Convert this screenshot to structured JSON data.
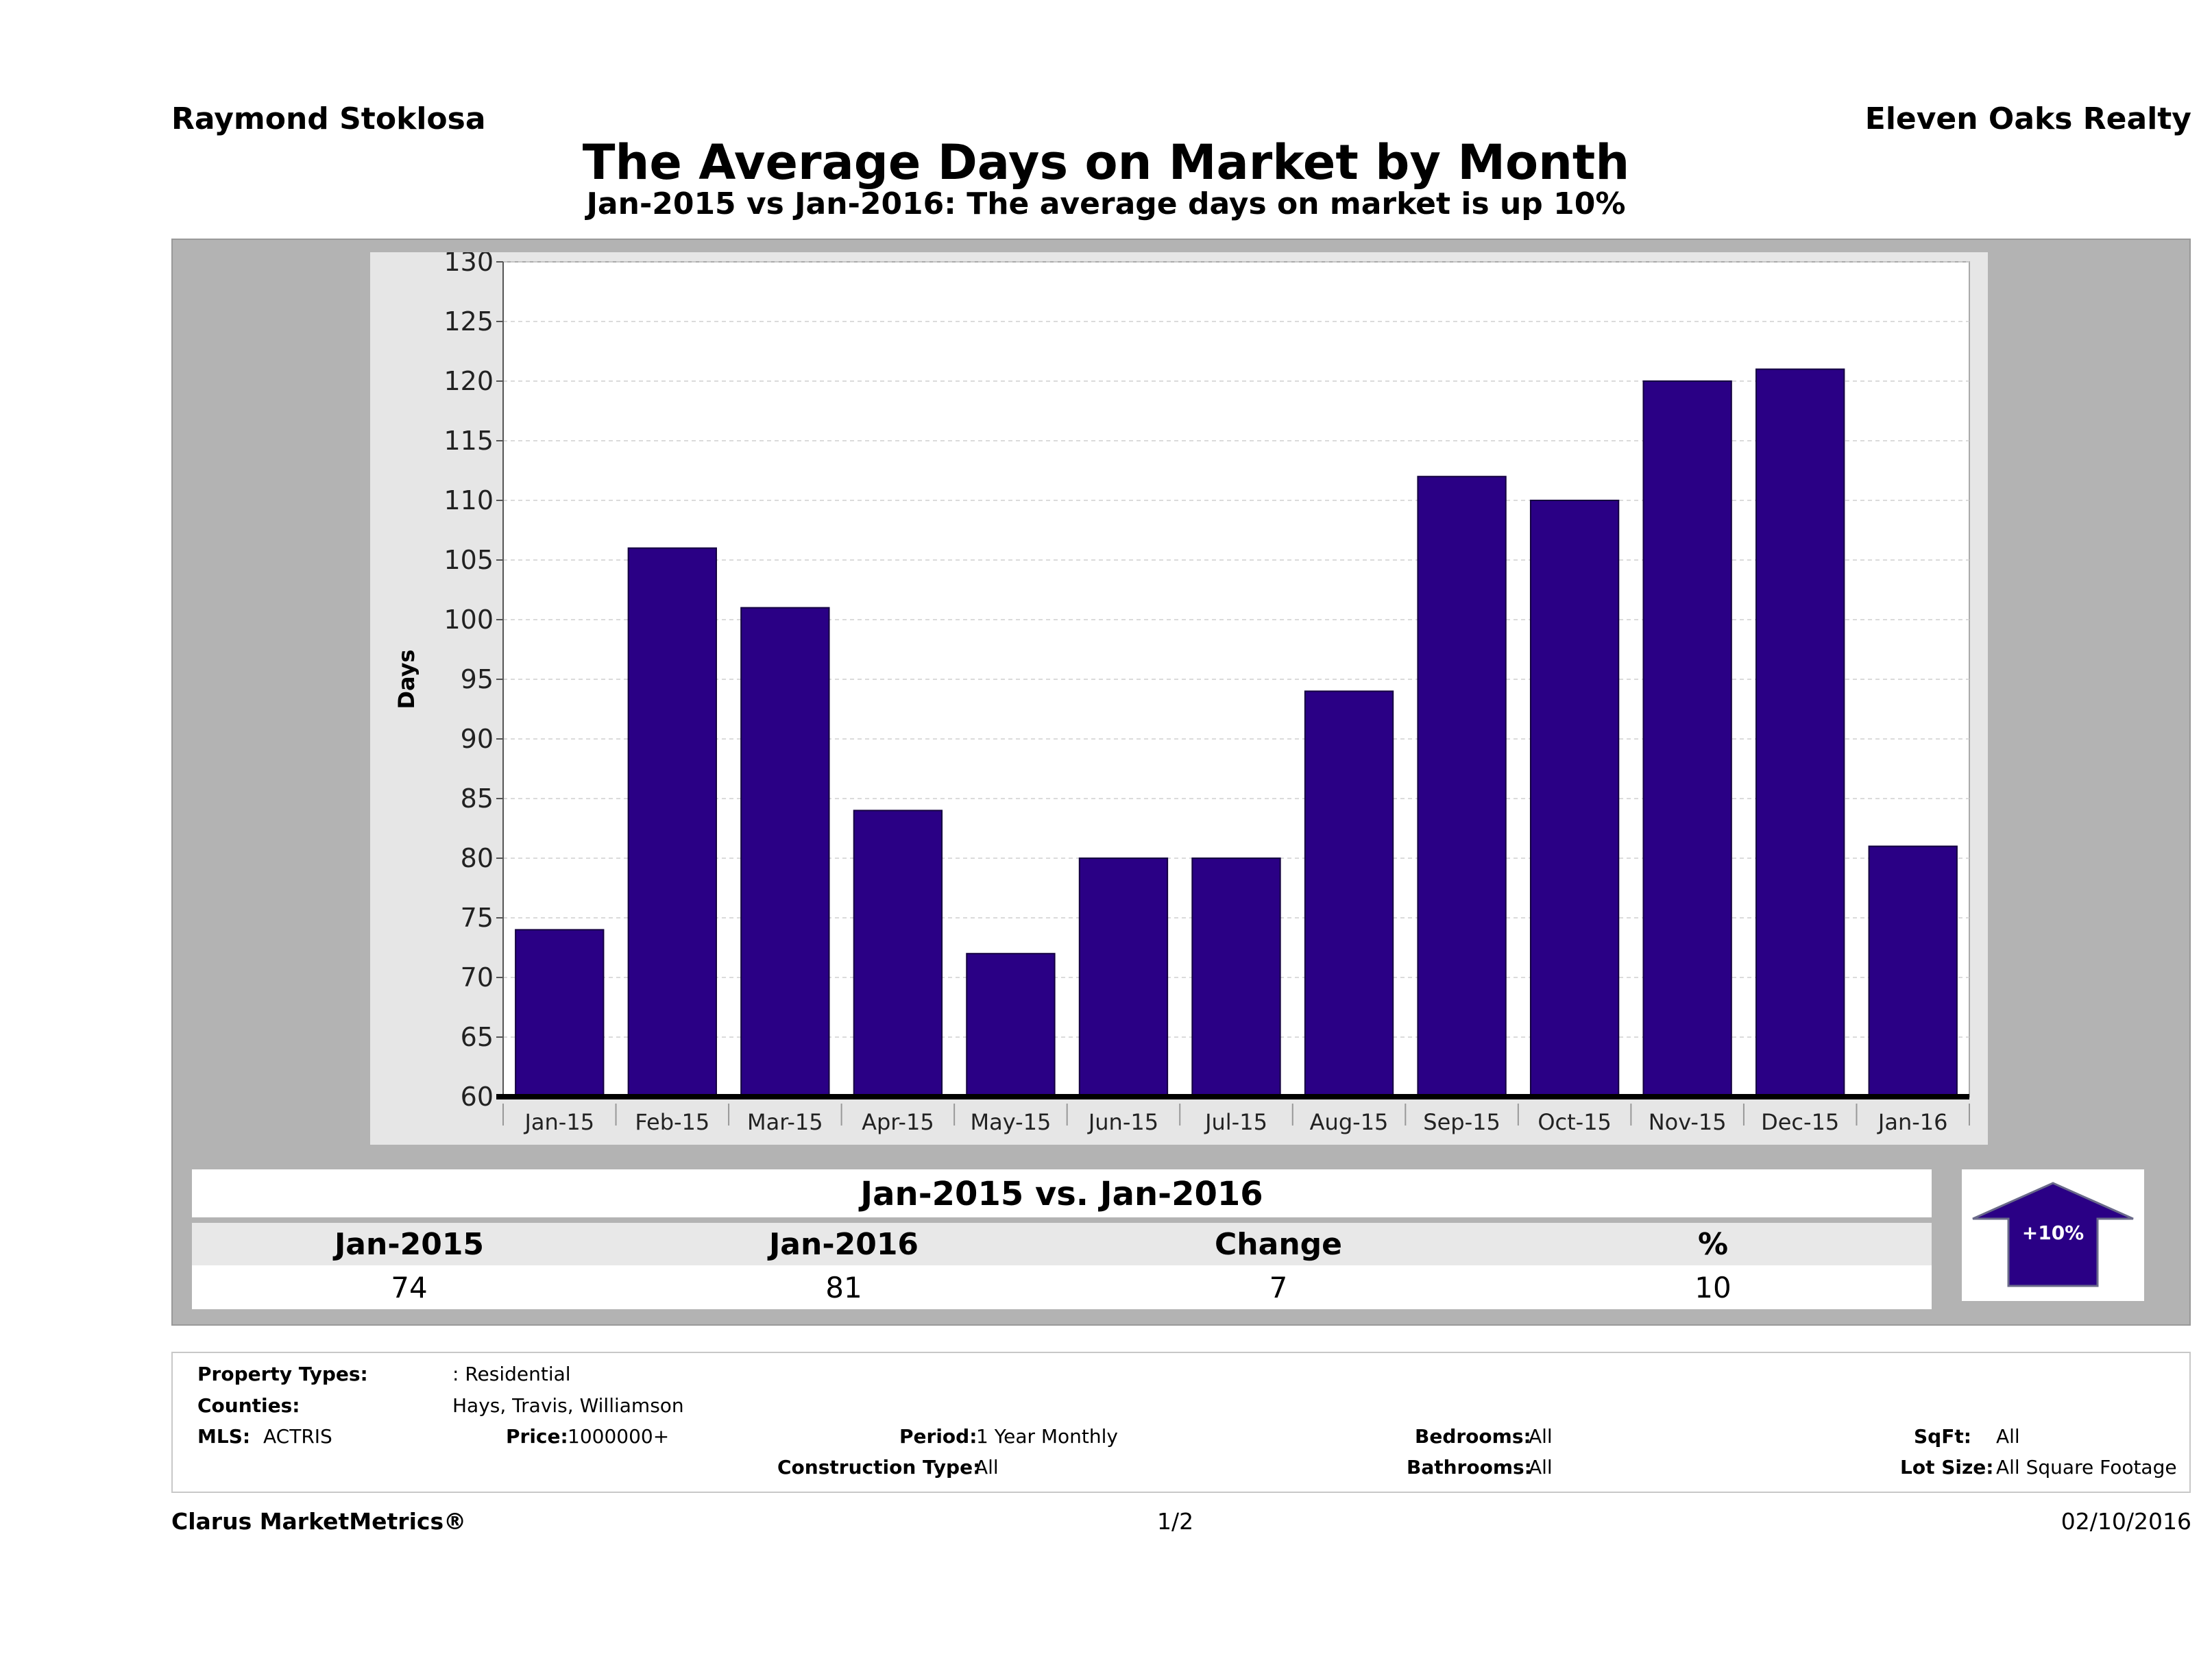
{
  "header": {
    "agent_name": "Raymond Stoklosa",
    "company": "Eleven Oaks Realty",
    "title": "The Average Days on Market by Month",
    "subtitle": "Jan-2015 vs Jan-2016: The average days on market is up 10%"
  },
  "chart_data": {
    "type": "bar",
    "ylabel": "Days",
    "xlabel": "",
    "categories": [
      "Jan-15",
      "Feb-15",
      "Mar-15",
      "Apr-15",
      "May-15",
      "Jun-15",
      "Jul-15",
      "Aug-15",
      "Sep-15",
      "Oct-15",
      "Nov-15",
      "Dec-15",
      "Jan-16"
    ],
    "values": [
      74,
      106,
      101,
      84,
      72,
      80,
      80,
      94,
      112,
      110,
      120,
      121,
      81
    ],
    "ylim": [
      60,
      130
    ],
    "yticks": [
      60,
      65,
      70,
      75,
      80,
      85,
      90,
      95,
      100,
      105,
      110,
      115,
      120,
      125,
      130
    ],
    "grid": true,
    "bar_color": "#2a0085",
    "legend": "none"
  },
  "summary": {
    "title": "Jan-2015 vs. Jan-2016",
    "headers": [
      "Jan-2015",
      "Jan-2016",
      "Change",
      "%"
    ],
    "values": [
      "74",
      "81",
      "7",
      "10"
    ],
    "badge_label": "+10%",
    "badge_direction": "up",
    "badge_color": "#2a0085"
  },
  "filters": {
    "property_types_label": "Property Types:",
    "property_types_value": ": Residential",
    "counties_label": "Counties:",
    "counties_value": "Hays, Travis, Williamson",
    "mls_label": "MLS:",
    "mls_value": "ACTRIS",
    "price_label": "Price:",
    "price_value": "1000000+",
    "period_label": "Period:",
    "period_value": "1 Year Monthly",
    "construction_label": "Construction Type:",
    "construction_value": "All",
    "bedrooms_label": "Bedrooms:",
    "bedrooms_value": "All",
    "bathrooms_label": "Bathrooms:",
    "bathrooms_value": "All",
    "sqft_label": "SqFt:",
    "sqft_value": "All",
    "lotsize_label": "Lot Size:",
    "lotsize_value": "All Square Footage"
  },
  "footer": {
    "brand": "Clarus MarketMetrics®",
    "page": "1/2",
    "date": "02/10/2016"
  }
}
